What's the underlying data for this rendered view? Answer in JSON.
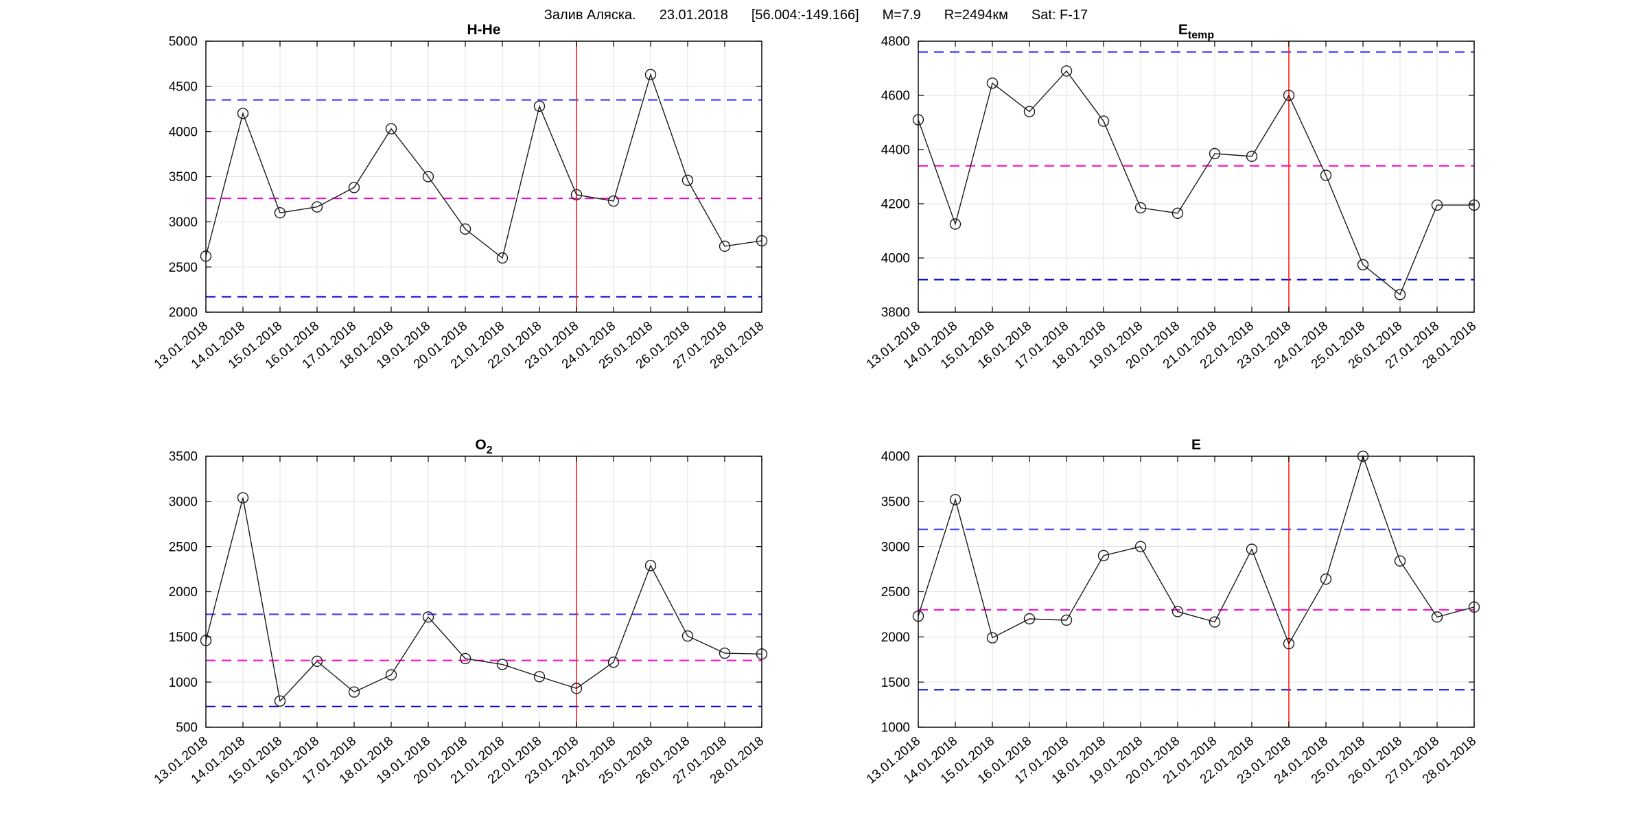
{
  "header": {
    "parts": [
      "Залив Аляска.",
      "23.01.2018",
      "[56.004:-149.166]",
      "M=7.9",
      "R=2494км",
      "Sat: F-17"
    ]
  },
  "colors": {
    "series": "#1a1a1a",
    "bound_upper": "#3333ff",
    "bound_lower": "#0000cc",
    "mean": "#ff00cc",
    "event": "#ff1a1a",
    "grid": "#e0e0e0",
    "axis": "#000000"
  },
  "dates": [
    "13.01.2018",
    "14.01.2018",
    "15.01.2018",
    "16.01.2018",
    "17.01.2018",
    "18.01.2018",
    "19.01.2018",
    "20.01.2018",
    "21.01.2018",
    "22.01.2018",
    "23.01.2018",
    "24.01.2018",
    "25.01.2018",
    "26.01.2018",
    "27.01.2018",
    "28.01.2018"
  ],
  "event_date": "23.01.2018",
  "event_index": 10,
  "chart_data": [
    {
      "id": "h-he",
      "type": "line",
      "title_main": "H-He",
      "title_sub": "",
      "categories": [
        "13.01.2018",
        "14.01.2018",
        "15.01.2018",
        "16.01.2018",
        "17.01.2018",
        "18.01.2018",
        "19.01.2018",
        "20.01.2018",
        "21.01.2018",
        "22.01.2018",
        "23.01.2018",
        "24.01.2018",
        "25.01.2018",
        "26.01.2018",
        "27.01.2018",
        "28.01.2018"
      ],
      "values": [
        2620,
        4200,
        3100,
        3165,
        3380,
        4030,
        3500,
        2920,
        2600,
        4280,
        3300,
        3230,
        4630,
        3460,
        2730,
        2790
      ],
      "upper_bound": 4350,
      "mean": 3260,
      "lower_bound": 2170,
      "ylim": [
        2000,
        5000
      ],
      "yticks": [
        2000,
        2500,
        3000,
        3500,
        4000,
        4500,
        5000
      ],
      "grid": true,
      "legend": "none"
    },
    {
      "id": "e-temp",
      "type": "line",
      "title_main": "E",
      "title_sub": "temp",
      "categories": [
        "13.01.2018",
        "14.01.2018",
        "15.01.2018",
        "16.01.2018",
        "17.01.2018",
        "18.01.2018",
        "19.01.2018",
        "20.01.2018",
        "21.01.2018",
        "22.01.2018",
        "23.01.2018",
        "24.01.2018",
        "25.01.2018",
        "26.01.2018",
        "27.01.2018",
        "28.01.2018"
      ],
      "values": [
        4510,
        4125,
        4645,
        4540,
        4690,
        4505,
        4185,
        4165,
        4385,
        4375,
        4600,
        4305,
        3975,
        3865,
        4195,
        4195
      ],
      "upper_bound": 4760,
      "mean": 4340,
      "lower_bound": 3920,
      "ylim": [
        3800,
        4800
      ],
      "yticks": [
        3800,
        4000,
        4200,
        4400,
        4600,
        4800
      ],
      "grid": true,
      "legend": "none"
    },
    {
      "id": "o2",
      "type": "line",
      "title_main": "O",
      "title_sub": "2",
      "categories": [
        "13.01.2018",
        "14.01.2018",
        "15.01.2018",
        "16.01.2018",
        "17.01.2018",
        "18.01.2018",
        "19.01.2018",
        "20.01.2018",
        "21.01.2018",
        "22.01.2018",
        "23.01.2018",
        "24.01.2018",
        "25.01.2018",
        "26.01.2018",
        "27.01.2018",
        "28.01.2018"
      ],
      "values": [
        1460,
        3040,
        790,
        1230,
        890,
        1080,
        1720,
        1260,
        1195,
        1060,
        930,
        1220,
        2290,
        1510,
        1320,
        1310
      ],
      "upper_bound": 1750,
      "mean": 1240,
      "lower_bound": 730,
      "ylim": [
        500,
        3500
      ],
      "yticks": [
        500,
        1000,
        1500,
        2000,
        2500,
        3000,
        3500
      ],
      "grid": true,
      "legend": "none"
    },
    {
      "id": "e",
      "type": "line",
      "title_main": "E",
      "title_sub": "",
      "categories": [
        "13.01.2018",
        "14.01.2018",
        "15.01.2018",
        "16.01.2018",
        "17.01.2018",
        "18.01.2018",
        "19.01.2018",
        "20.01.2018",
        "21.01.2018",
        "22.01.2018",
        "23.01.2018",
        "24.01.2018",
        "25.01.2018",
        "26.01.2018",
        "27.01.2018",
        "28.01.2018"
      ],
      "values": [
        2230,
        3520,
        1990,
        2200,
        2185,
        2900,
        3000,
        2280,
        2165,
        2970,
        1925,
        2640,
        4000,
        2840,
        2220,
        2330
      ],
      "upper_bound": 3190,
      "mean": 2300,
      "lower_bound": 1415,
      "ylim": [
        1000,
        4000
      ],
      "yticks": [
        1000,
        1500,
        2000,
        2500,
        3000,
        3500,
        4000
      ],
      "grid": true,
      "legend": "none"
    }
  ]
}
